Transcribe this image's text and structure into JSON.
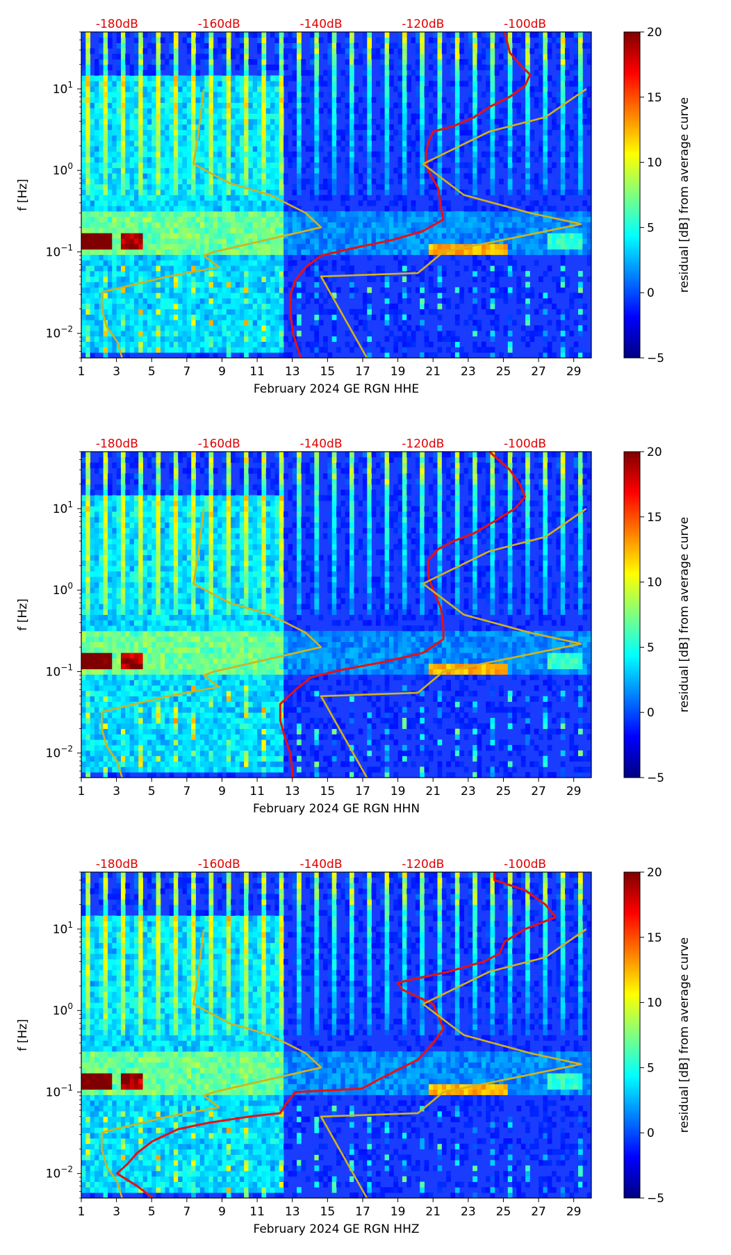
{
  "chart_data": [
    {
      "type": "heatmap",
      "title": "",
      "xlabel": "February 2024 GE RGN  HHE",
      "ylabel": "f [Hz]",
      "x_ticks": [
        "1",
        "3",
        "5",
        "7",
        "9",
        "11",
        "13",
        "15",
        "17",
        "19",
        "21",
        "23",
        "25",
        "27",
        "29"
      ],
      "xlim": [
        1,
        30
      ],
      "y_scale": "log",
      "ylim": [
        0.005,
        50
      ],
      "y_ticks": [
        {
          "value": 0.01,
          "base": "10",
          "exp": "−2"
        },
        {
          "value": 0.1,
          "base": "10",
          "exp": "−1"
        },
        {
          "value": 1,
          "base": "10",
          "exp": "0"
        },
        {
          "value": 10,
          "base": "10",
          "exp": "1"
        }
      ],
      "top_db_labels": [
        "-180dB",
        "-160dB",
        "-140dB",
        "-120dB",
        "-100dB"
      ],
      "top_db_axis_range": [
        -187,
        -87
      ],
      "colorbar": {
        "label": "residual [dB] from average curve",
        "min": -5,
        "max": 20,
        "ticks": [
          "20",
          "15",
          "10",
          "5",
          "0",
          "−5"
        ],
        "colormap": "jet"
      },
      "series": [
        {
          "color": "#e81010",
          "points": [
            [
              -104,
              50
            ],
            [
              -103,
              28
            ],
            [
              -101,
              20
            ],
            [
              -99,
              15
            ],
            [
              -100,
              11
            ],
            [
              -103,
              8
            ],
            [
              -107,
              6
            ],
            [
              -110,
              4.5
            ],
            [
              -114,
              3.5
            ],
            [
              -118,
              3.0
            ],
            [
              -119,
              2.2
            ],
            [
              -119.5,
              1.5
            ],
            [
              -119,
              1.0
            ],
            [
              -117,
              0.6
            ],
            [
              -116.5,
              0.35
            ],
            [
              -116,
              0.25
            ],
            [
              -120,
              0.18
            ],
            [
              -126,
              0.14
            ],
            [
              -134,
              0.11
            ],
            [
              -140,
              0.09
            ],
            [
              -143,
              0.065
            ],
            [
              -145,
              0.045
            ],
            [
              -146,
              0.03
            ],
            [
              -146,
              0.018
            ],
            [
              -145.5,
              0.01
            ],
            [
              -144,
              0.005
            ]
          ]
        },
        {
          "color": "#d4b21a",
          "points": [
            [
              -179,
              0.005
            ],
            [
              -180,
              0.008
            ],
            [
              -182,
              0.012
            ],
            [
              -183,
              0.02
            ],
            [
              -183,
              0.032
            ],
            [
              -170,
              0.05
            ],
            [
              -160,
              0.065
            ],
            [
              -163,
              0.09
            ],
            [
              -161,
              0.1
            ],
            [
              -140,
              0.2
            ],
            [
              -143,
              0.3
            ],
            [
              -150,
              0.5
            ],
            [
              -158,
              0.7
            ],
            [
              -165,
              1.2
            ],
            [
              -164,
              3
            ],
            [
              -163,
              10
            ]
          ]
        },
        {
          "color": "#d4b21a",
          "points": [
            [
              -131,
              0.005
            ],
            [
              -140,
              0.05
            ],
            [
              -121,
              0.055
            ],
            [
              -116,
              0.1
            ],
            [
              -102,
              0.15
            ],
            [
              -89,
              0.22
            ],
            [
              -99,
              0.3
            ],
            [
              -112,
              0.5
            ],
            [
              -120,
              1.2
            ],
            [
              -107,
              3.0
            ],
            [
              -96,
              4.5
            ],
            [
              -88,
              10
            ]
          ]
        }
      ]
    },
    {
      "type": "heatmap",
      "title": "",
      "xlabel": "February 2024 GE RGN  HHN",
      "ylabel": "f [Hz]",
      "x_ticks": [
        "1",
        "3",
        "5",
        "7",
        "9",
        "11",
        "13",
        "15",
        "17",
        "19",
        "21",
        "23",
        "25",
        "27",
        "29"
      ],
      "xlim": [
        1,
        30
      ],
      "y_scale": "log",
      "ylim": [
        0.005,
        50
      ],
      "y_ticks": [
        {
          "value": 0.01,
          "base": "10",
          "exp": "−2"
        },
        {
          "value": 0.1,
          "base": "10",
          "exp": "−1"
        },
        {
          "value": 1,
          "base": "10",
          "exp": "0"
        },
        {
          "value": 10,
          "base": "10",
          "exp": "1"
        }
      ],
      "top_db_labels": [
        "-180dB",
        "-160dB",
        "-140dB",
        "-120dB",
        "-100dB"
      ],
      "top_db_axis_range": [
        -187,
        -87
      ],
      "colorbar": {
        "label": "residual [dB] from average curve",
        "min": -5,
        "max": 20,
        "ticks": [
          "20",
          "15",
          "10",
          "5",
          "0",
          "−5"
        ],
        "colormap": "jet"
      },
      "series": [
        {
          "color": "#e81010",
          "points": [
            [
              -107,
              50
            ],
            [
              -103,
              30
            ],
            [
              -101,
              20
            ],
            [
              -100,
              14
            ],
            [
              -102,
              10
            ],
            [
              -106,
              7
            ],
            [
              -110,
              5
            ],
            [
              -114,
              4
            ],
            [
              -117,
              3.2
            ],
            [
              -119,
              2.3
            ],
            [
              -119,
              1.5
            ],
            [
              -118,
              1.0
            ],
            [
              -116.5,
              0.6
            ],
            [
              -116,
              0.35
            ],
            [
              -116,
              0.25
            ],
            [
              -120,
              0.17
            ],
            [
              -128,
              0.13
            ],
            [
              -136,
              0.105
            ],
            [
              -142,
              0.085
            ],
            [
              -145,
              0.06
            ],
            [
              -148,
              0.04
            ],
            [
              -148,
              0.025
            ],
            [
              -147,
              0.015
            ],
            [
              -146,
              0.01
            ],
            [
              -145.5,
              0.005
            ]
          ]
        },
        {
          "color": "#d4b21a",
          "points": [
            [
              -179,
              0.005
            ],
            [
              -180,
              0.008
            ],
            [
              -182,
              0.012
            ],
            [
              -183,
              0.02
            ],
            [
              -183,
              0.032
            ],
            [
              -170,
              0.05
            ],
            [
              -160,
              0.065
            ],
            [
              -163,
              0.09
            ],
            [
              -161,
              0.1
            ],
            [
              -140,
              0.2
            ],
            [
              -143,
              0.3
            ],
            [
              -150,
              0.5
            ],
            [
              -158,
              0.7
            ],
            [
              -165,
              1.2
            ],
            [
              -164,
              3
            ],
            [
              -163,
              10
            ]
          ]
        },
        {
          "color": "#d4b21a",
          "points": [
            [
              -131,
              0.005
            ],
            [
              -140,
              0.05
            ],
            [
              -121,
              0.055
            ],
            [
              -116,
              0.1
            ],
            [
              -102,
              0.15
            ],
            [
              -89,
              0.22
            ],
            [
              -99,
              0.3
            ],
            [
              -112,
              0.5
            ],
            [
              -120,
              1.2
            ],
            [
              -107,
              3.0
            ],
            [
              -96,
              4.5
            ],
            [
              -88,
              10
            ]
          ]
        }
      ]
    },
    {
      "type": "heatmap",
      "title": "",
      "xlabel": "February 2024 GE RGN  HHZ",
      "ylabel": "f [Hz]",
      "x_ticks": [
        "1",
        "3",
        "5",
        "7",
        "9",
        "11",
        "13",
        "15",
        "17",
        "19",
        "21",
        "23",
        "25",
        "27",
        "29"
      ],
      "xlim": [
        1,
        30
      ],
      "y_scale": "log",
      "ylim": [
        0.005,
        50
      ],
      "y_ticks": [
        {
          "value": 0.01,
          "base": "10",
          "exp": "−2"
        },
        {
          "value": 0.1,
          "base": "10",
          "exp": "−1"
        },
        {
          "value": 1,
          "base": "10",
          "exp": "0"
        },
        {
          "value": 10,
          "base": "10",
          "exp": "1"
        }
      ],
      "top_db_labels": [
        "-180dB",
        "-160dB",
        "-140dB",
        "-120dB",
        "-100dB"
      ],
      "top_db_axis_range": [
        -187,
        -87
      ],
      "colorbar": {
        "label": "residual [dB] from average curve",
        "min": -5,
        "max": 20,
        "ticks": [
          "20",
          "15",
          "10",
          "5",
          "0",
          "−5"
        ],
        "colormap": "jet"
      },
      "series": [
        {
          "color": "#e81010",
          "points": [
            [
              -106,
              50
            ],
            [
              -106,
              40
            ],
            [
              -100,
              30
            ],
            [
              -96,
              20
            ],
            [
              -94,
              14
            ],
            [
              -100,
              10
            ],
            [
              -104,
              7
            ],
            [
              -105,
              5
            ],
            [
              -108,
              4
            ],
            [
              -115,
              3
            ],
            [
              -125,
              2.2
            ],
            [
              -124,
              1.8
            ],
            [
              -118,
              1.2
            ],
            [
              -116,
              0.6
            ],
            [
              -118,
              0.4
            ],
            [
              -121,
              0.25
            ],
            [
              -128,
              0.15
            ],
            [
              -132,
              0.11
            ],
            [
              -145,
              0.1
            ],
            [
              -147,
              0.07
            ],
            [
              -148,
              0.055
            ],
            [
              -154,
              0.05
            ],
            [
              -162,
              0.042
            ],
            [
              -168,
              0.035
            ],
            [
              -173,
              0.025
            ],
            [
              -176,
              0.018
            ],
            [
              -178,
              0.013
            ],
            [
              -180,
              0.01
            ],
            [
              -176,
              0.007
            ],
            [
              -173,
              0.005
            ]
          ]
        },
        {
          "color": "#d4b21a",
          "points": [
            [
              -179,
              0.005
            ],
            [
              -180,
              0.008
            ],
            [
              -182,
              0.012
            ],
            [
              -183,
              0.02
            ],
            [
              -183,
              0.032
            ],
            [
              -170,
              0.05
            ],
            [
              -160,
              0.065
            ],
            [
              -163,
              0.09
            ],
            [
              -161,
              0.1
            ],
            [
              -140,
              0.2
            ],
            [
              -143,
              0.3
            ],
            [
              -150,
              0.5
            ],
            [
              -158,
              0.7
            ],
            [
              -165,
              1.2
            ],
            [
              -164,
              3
            ],
            [
              -163,
              10
            ]
          ]
        },
        {
          "color": "#d4b21a",
          "points": [
            [
              -131,
              0.005
            ],
            [
              -140,
              0.05
            ],
            [
              -121,
              0.055
            ],
            [
              -116,
              0.1
            ],
            [
              -102,
              0.15
            ],
            [
              -89,
              0.22
            ],
            [
              -99,
              0.3
            ],
            [
              -112,
              0.5
            ],
            [
              -120,
              1.2
            ],
            [
              -107,
              3.0
            ],
            [
              -96,
              4.5
            ],
            [
              -88,
              10
            ]
          ]
        }
      ]
    }
  ]
}
